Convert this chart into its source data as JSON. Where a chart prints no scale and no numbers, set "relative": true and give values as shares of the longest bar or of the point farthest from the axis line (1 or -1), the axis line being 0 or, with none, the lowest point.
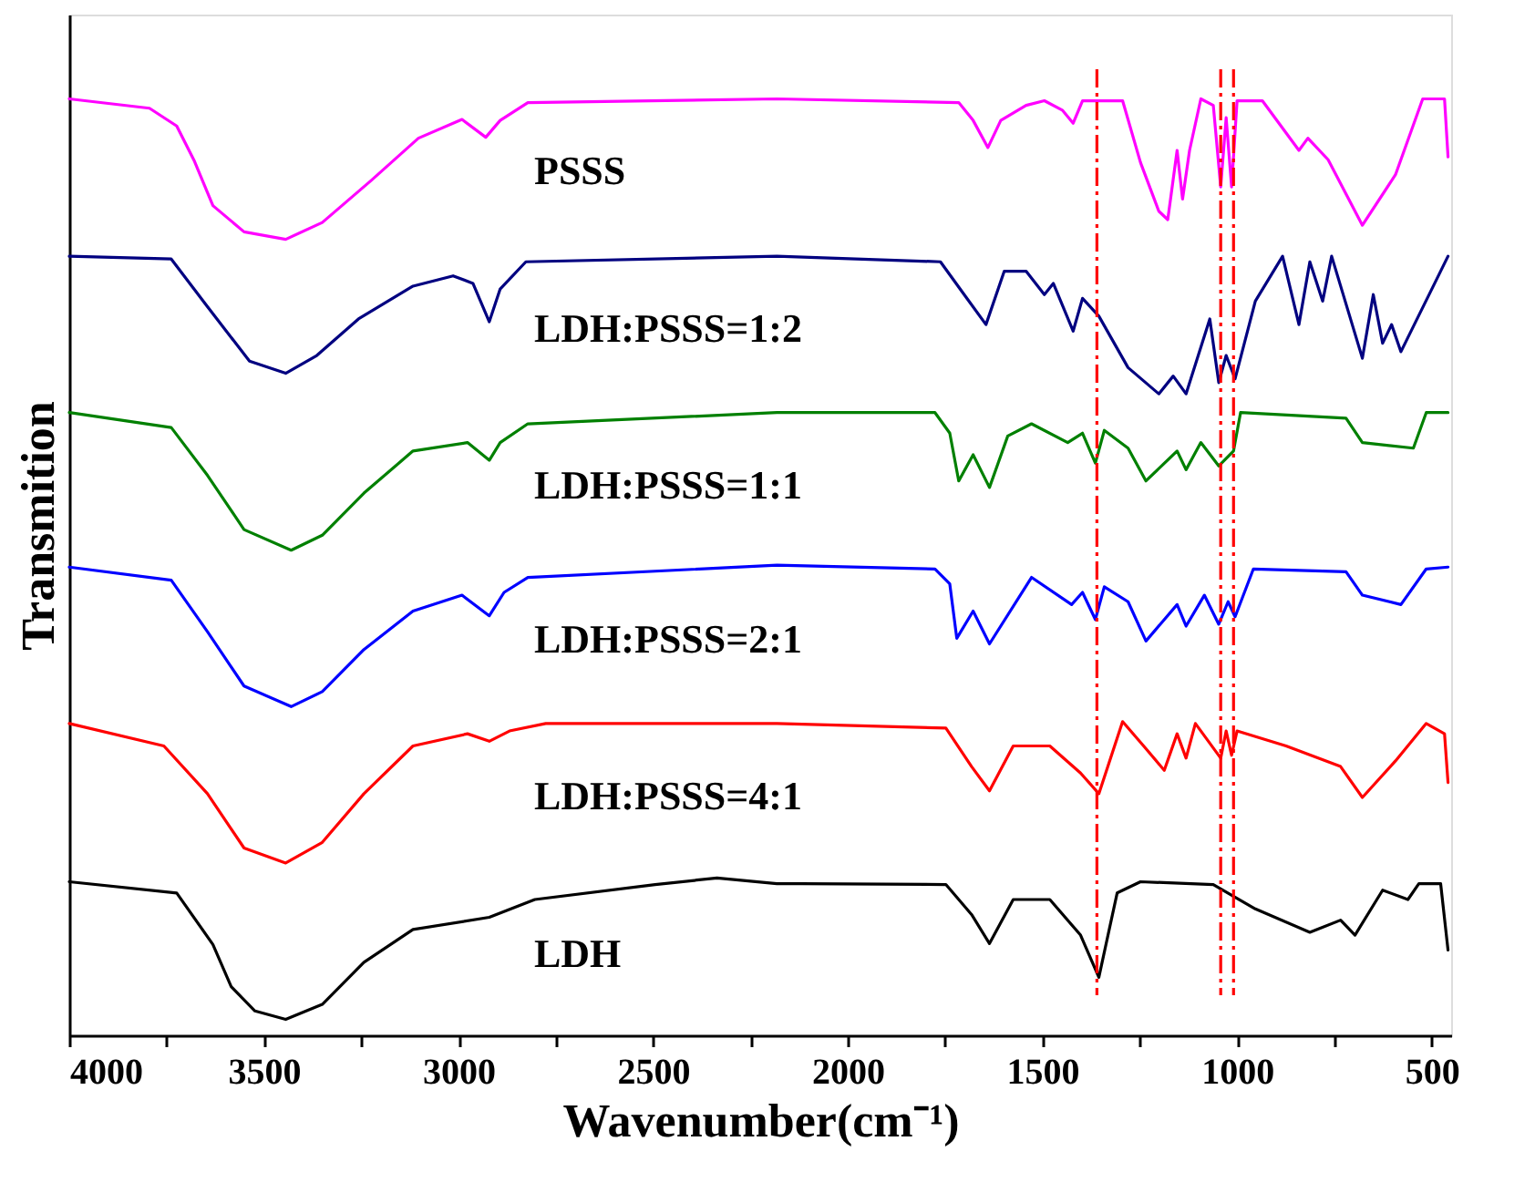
{
  "chart_data": {
    "type": "line",
    "relative": true,
    "tick_labels": "x",
    "xlabel": "Wavenumber(cm⁻¹)",
    "ylabel": "Transmition",
    "xlim": [
      4000,
      450
    ],
    "xticks": [
      4000,
      {
        "value": 3750,
        "label": null
      },
      3500,
      {
        "value": 3250,
        "label": null
      },
      3000,
      {
        "value": 2750,
        "label": null
      },
      2500,
      {
        "value": 2250,
        "label": null
      },
      2000,
      {
        "value": 1750,
        "label": null
      },
      1500,
      {
        "value": 1250,
        "label": null
      },
      1000,
      {
        "value": 750,
        "label": null
      },
      500
    ],
    "series": [
      {
        "name": "PSSS",
        "color": "#ff00ff",
        "x": [
          4000,
          3794,
          3724,
          3678,
          3631,
          3551,
          3444,
          3350,
          3224,
          3103,
          2991,
          2930,
          2893,
          2822,
          2182,
          1715,
          1678,
          1640,
          1607,
          1542,
          1495,
          1449,
          1421,
          1397,
          1294,
          1248,
          1201,
          1178,
          1154,
          1140,
          1122,
          1093,
          1061,
          1042,
          1028,
          1014,
          1000,
          935,
          841,
          818,
          766,
          678,
          593,
          523,
          467,
          458
        ],
        "values": [
          1.0,
          0.99,
          0.971,
          0.933,
          0.886,
          0.858,
          0.85,
          0.868,
          0.913,
          0.958,
          0.978,
          0.959,
          0.977,
          0.996,
          1.0,
          0.996,
          0.977,
          0.948,
          0.977,
          0.993,
          0.998,
          0.988,
          0.974,
          0.998,
          0.998,
          0.932,
          0.88,
          0.871,
          0.945,
          0.893,
          0.945,
          1.0,
          0.993,
          0.906,
          0.98,
          0.906,
          0.998,
          0.998,
          0.945,
          0.958,
          0.935,
          0.865,
          0.919,
          1.0,
          1.0,
          0.938
        ]
      },
      {
        "name": "LDH:PSSS=1:2",
        "color": "#000080",
        "x": [
          4000,
          3738,
          3645,
          3537,
          3444,
          3364,
          3257,
          3117,
          3014,
          2963,
          2921,
          2893,
          2827,
          2182,
          1762,
          1701,
          1645,
          1598,
          1542,
          1495,
          1472,
          1421,
          1397,
          1355,
          1280,
          1201,
          1164,
          1131,
          1070,
          1047,
          1028,
          1005,
          953,
          883,
          841,
          813,
          780,
          757,
          678,
          650,
          626,
          603,
          579,
          458
        ],
        "values": [
          0.832,
          0.829,
          0.778,
          0.72,
          0.707,
          0.726,
          0.765,
          0.8,
          0.811,
          0.803,
          0.762,
          0.797,
          0.826,
          0.832,
          0.826,
          0.791,
          0.759,
          0.816,
          0.816,
          0.791,
          0.803,
          0.752,
          0.787,
          0.768,
          0.713,
          0.685,
          0.704,
          0.685,
          0.765,
          0.697,
          0.726,
          0.701,
          0.784,
          0.832,
          0.759,
          0.826,
          0.784,
          0.832,
          0.723,
          0.791,
          0.739,
          0.759,
          0.73,
          0.832
        ]
      },
      {
        "name": "LDH:PSSS=1:1",
        "color": "#008000",
        "x": [
          4000,
          3738,
          3645,
          3551,
          3430,
          3350,
          3243,
          3117,
          2977,
          2921,
          2893,
          2822,
          2182,
          1776,
          1738,
          1715,
          1678,
          1636,
          1589,
          1528,
          1435,
          1397,
          1364,
          1341,
          1280,
          1234,
          1154,
          1131,
          1093,
          1047,
          1009,
          991,
          720,
          678,
          547,
          514,
          458
        ],
        "values": [
          0.665,
          0.649,
          0.598,
          0.54,
          0.518,
          0.534,
          0.579,
          0.624,
          0.633,
          0.614,
          0.633,
          0.653,
          0.665,
          0.665,
          0.643,
          0.592,
          0.62,
          0.585,
          0.64,
          0.653,
          0.633,
          0.643,
          0.611,
          0.646,
          0.627,
          0.592,
          0.624,
          0.604,
          0.633,
          0.608,
          0.624,
          0.665,
          0.659,
          0.633,
          0.627,
          0.665,
          0.665
        ]
      },
      {
        "name": "LDH:PSSS=2:1",
        "color": "#0000ff",
        "x": [
          4000,
          3738,
          3645,
          3551,
          3430,
          3350,
          3243,
          3117,
          2991,
          2921,
          2883,
          2822,
          2182,
          1776,
          1738,
          1720,
          1678,
          1636,
          1528,
          1425,
          1397,
          1364,
          1341,
          1280,
          1234,
          1154,
          1131,
          1084,
          1047,
          1023,
          1005,
          958,
          720,
          678,
          579,
          514,
          458
        ],
        "values": [
          0.5,
          0.486,
          0.431,
          0.373,
          0.351,
          0.367,
          0.412,
          0.453,
          0.47,
          0.448,
          0.473,
          0.489,
          0.502,
          0.498,
          0.482,
          0.424,
          0.453,
          0.418,
          0.489,
          0.46,
          0.473,
          0.444,
          0.479,
          0.463,
          0.421,
          0.46,
          0.437,
          0.47,
          0.439,
          0.463,
          0.447,
          0.498,
          0.495,
          0.47,
          0.46,
          0.498,
          0.5
        ]
      },
      {
        "name": "LDH:PSSS=4:1",
        "color": "#ff0000",
        "x": [
          4000,
          3757,
          3645,
          3551,
          3444,
          3350,
          3243,
          3117,
          2977,
          2921,
          2869,
          2776,
          2182,
          1748,
          1682,
          1636,
          1575,
          1481,
          1402,
          1355,
          1294,
          1234,
          1187,
          1154,
          1131,
          1107,
          1042,
          1028,
          1014,
          1000,
          874,
          734,
          678,
          593,
          514,
          467,
          458
        ],
        "values": [
          0.333,
          0.309,
          0.258,
          0.2,
          0.184,
          0.206,
          0.258,
          0.309,
          0.322,
          0.314,
          0.325,
          0.333,
          0.333,
          0.328,
          0.287,
          0.261,
          0.309,
          0.309,
          0.28,
          0.258,
          0.335,
          0.306,
          0.283,
          0.322,
          0.296,
          0.333,
          0.296,
          0.325,
          0.299,
          0.325,
          0.309,
          0.287,
          0.254,
          0.293,
          0.333,
          0.322,
          0.27
        ]
      },
      {
        "name": "LDH",
        "color": "#000000",
        "x": [
          4000,
          3724,
          3631,
          3584,
          3523,
          3444,
          3350,
          3243,
          3117,
          2921,
          2804,
          2495,
          2336,
          2182,
          2121,
          1748,
          1682,
          1636,
          1575,
          1481,
          1402,
          1355,
          1308,
          1248,
          1061,
          953,
          813,
          734,
          697,
          626,
          561,
          533,
          477,
          458
        ],
        "values": [
          0.164,
          0.152,
          0.097,
          0.052,
          0.026,
          0.017,
          0.033,
          0.078,
          0.113,
          0.126,
          0.145,
          0.161,
          0.168,
          0.162,
          0.162,
          0.161,
          0.129,
          0.098,
          0.145,
          0.145,
          0.107,
          0.062,
          0.152,
          0.164,
          0.161,
          0.135,
          0.11,
          0.123,
          0.107,
          0.155,
          0.145,
          0.162,
          0.162,
          0.091
        ]
      }
    ],
    "ref_lines": [
      {
        "axis": "x",
        "value": 1360,
        "color": "#ff0000",
        "line_style": "dashed"
      },
      {
        "axis": "x",
        "value": 1042,
        "color": "#ff0000",
        "line_style": "dashed"
      },
      {
        "axis": "x",
        "value": 1009,
        "color": "#ff0000",
        "line_style": "dashed"
      }
    ]
  }
}
